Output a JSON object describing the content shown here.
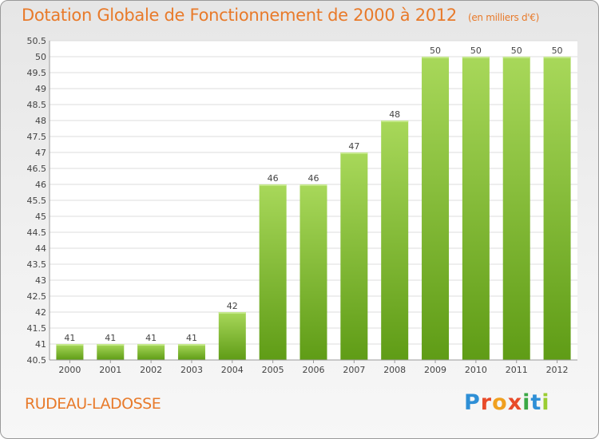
{
  "header": {
    "title": "Dotation Globale de Fonctionnement de 2000 à 2012",
    "unit": "(en milliers d'€)"
  },
  "footer": {
    "commune": "RUDEAU-LADOSSE",
    "logo_text": "Proxiti",
    "logo_letters": [
      "P",
      "r",
      "o",
      "x",
      "i",
      "t",
      "i"
    ],
    "logo_colors": [
      "#2e8fd6",
      "#e84b2a",
      "#f0a020",
      "#e84b2a",
      "#3aa845",
      "#2e8fd6",
      "#9acd32"
    ]
  },
  "chart_data": {
    "type": "bar",
    "title": "Dotation Globale de Fonctionnement de 2000 à 2012",
    "subtitle": "(en milliers d'€)",
    "categories": [
      "2000",
      "2001",
      "2002",
      "2003",
      "2004",
      "2005",
      "2006",
      "2007",
      "2008",
      "2009",
      "2010",
      "2011",
      "2012"
    ],
    "values": [
      41,
      41,
      41,
      41,
      42,
      46,
      46,
      47,
      48,
      50,
      50,
      50,
      50
    ],
    "data_labels": [
      "41",
      "41",
      "41",
      "41",
      "42",
      "46",
      "46",
      "47",
      "48",
      "50",
      "50",
      "50",
      "50"
    ],
    "ylim": [
      40.5,
      50.5
    ],
    "yticks": [
      "40.5",
      "41",
      "41.5",
      "42",
      "42.5",
      "43",
      "43.5",
      "44",
      "44.5",
      "45",
      "45.5",
      "46",
      "46.5",
      "47",
      "47.5",
      "48",
      "48.5",
      "49",
      "49.5",
      "50",
      "50.5"
    ],
    "xlabel": "",
    "ylabel": "",
    "grid": true,
    "bar_color": "#7cb82f",
    "bar_color_light": "#a8d85a",
    "bar_color_dark": "#5f9c16"
  }
}
